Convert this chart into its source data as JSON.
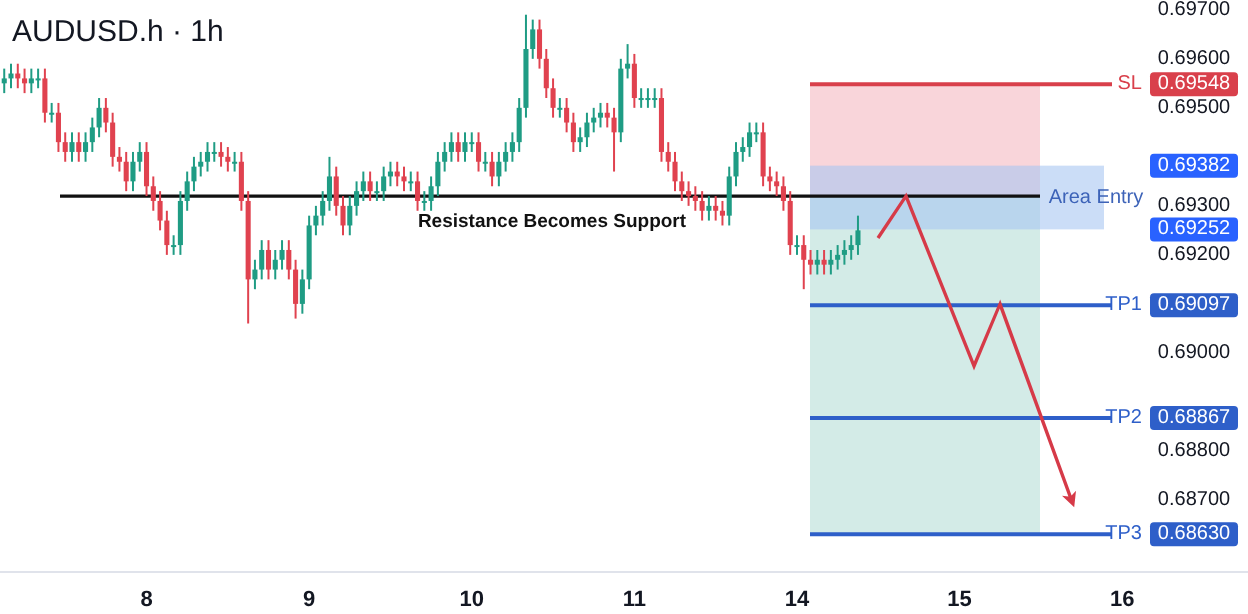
{
  "chart_data": {
    "type": "candlestick",
    "title": "AUDUSD.h · 1h",
    "categories": [
      null,
      null,
      null,
      null,
      null,
      null,
      null,
      null,
      null,
      null,
      null,
      null,
      null,
      null,
      null,
      null,
      null,
      null,
      null,
      null,
      null,
      "8",
      null,
      null,
      null,
      null,
      null,
      null,
      null,
      null,
      null,
      null,
      null,
      null,
      null,
      null,
      null,
      null,
      null,
      null,
      null,
      null,
      null,
      null,
      null,
      "9",
      null,
      null,
      null,
      null,
      null,
      null,
      null,
      null,
      null,
      null,
      null,
      null,
      null,
      null,
      null,
      null,
      null,
      null,
      null,
      null,
      null,
      null,
      null,
      "10",
      null,
      null,
      null,
      null,
      null,
      null,
      null,
      null,
      null,
      null,
      null,
      null,
      null,
      null,
      null,
      null,
      null,
      null,
      null,
      null,
      null,
      null,
      null,
      "11",
      null,
      null,
      null,
      null,
      null,
      null,
      null,
      null,
      null,
      null,
      null,
      null,
      null,
      null,
      null,
      null,
      null,
      null,
      null,
      null,
      null,
      null,
      null,
      "14",
      null,
      null,
      null,
      null,
      null,
      null,
      null,
      null,
      null,
      null,
      null,
      null,
      null,
      null,
      null,
      null,
      null,
      null,
      null,
      null,
      null,
      null,
      null,
      "15",
      null,
      null,
      null,
      null,
      null,
      null,
      null,
      null,
      null,
      null,
      null,
      null,
      null,
      null,
      null,
      null,
      null,
      null,
      null,
      null,
      null,
      null,
      null,
      "16",
      null,
      null
    ],
    "ohlc": [
      [
        0.6955,
        0.6958,
        0.6953,
        0.6956
      ],
      [
        0.6956,
        0.6959,
        0.6954,
        0.6957
      ],
      [
        0.6957,
        0.6959,
        0.6954,
        0.6956
      ],
      [
        0.6956,
        0.6958,
        0.6953,
        0.6955
      ],
      [
        0.6955,
        0.6958,
        0.6953,
        0.6956
      ],
      [
        0.6956,
        0.6958,
        0.6954,
        0.6956
      ],
      [
        0.6956,
        0.6958,
        0.6947,
        0.6949
      ],
      [
        0.6949,
        0.6951,
        0.6947,
        0.6949
      ],
      [
        0.6949,
        0.6951,
        0.6941,
        0.6943
      ],
      [
        0.6943,
        0.6945,
        0.6939,
        0.6941
      ],
      [
        0.6941,
        0.6945,
        0.6939,
        0.6943
      ],
      [
        0.6943,
        0.6945,
        0.6939,
        0.6941
      ],
      [
        0.6941,
        0.6945,
        0.6939,
        0.6943
      ],
      [
        0.6943,
        0.6948,
        0.6941,
        0.6946
      ],
      [
        0.6946,
        0.6952,
        0.6944,
        0.695
      ],
      [
        0.695,
        0.6952,
        0.6945,
        0.6947
      ],
      [
        0.6947,
        0.6949,
        0.6938,
        0.694
      ],
      [
        0.694,
        0.6942,
        0.6937,
        0.6939
      ],
      [
        0.6939,
        0.6941,
        0.6933,
        0.6935
      ],
      [
        0.6935,
        0.6941,
        0.6933,
        0.6939
      ],
      [
        0.6939,
        0.6943,
        0.6937,
        0.6941
      ],
      [
        0.6941,
        0.6943,
        0.6932,
        0.6934
      ],
      [
        0.6934,
        0.6936,
        0.6929,
        0.6931
      ],
      [
        0.6931,
        0.6933,
        0.6925,
        0.6927
      ],
      [
        0.6927,
        0.6929,
        0.692,
        0.6922
      ],
      [
        0.6922,
        0.6924,
        0.692,
        0.6922
      ],
      [
        0.6922,
        0.6933,
        0.692,
        0.6931
      ],
      [
        0.6931,
        0.6937,
        0.6929,
        0.6935
      ],
      [
        0.6935,
        0.694,
        0.6933,
        0.6938
      ],
      [
        0.6938,
        0.6941,
        0.6936,
        0.6939
      ],
      [
        0.6939,
        0.6943,
        0.6937,
        0.6941
      ],
      [
        0.6941,
        0.6943,
        0.6939,
        0.6941
      ],
      [
        0.6941,
        0.6943,
        0.6938,
        0.694
      ],
      [
        0.694,
        0.6942,
        0.6937,
        0.6939
      ],
      [
        0.6939,
        0.6941,
        0.6937,
        0.6939
      ],
      [
        0.6939,
        0.6941,
        0.6929,
        0.6931
      ],
      [
        0.6931,
        0.6933,
        0.6906,
        0.6915
      ],
      [
        0.6915,
        0.6919,
        0.6913,
        0.6917
      ],
      [
        0.6917,
        0.6923,
        0.6915,
        0.6921
      ],
      [
        0.6921,
        0.6923,
        0.6915,
        0.6917
      ],
      [
        0.6917,
        0.6921,
        0.6915,
        0.6919
      ],
      [
        0.6919,
        0.6923,
        0.6917,
        0.6921
      ],
      [
        0.6921,
        0.6923,
        0.6915,
        0.6917
      ],
      [
        0.6917,
        0.6919,
        0.6907,
        0.691
      ],
      [
        0.691,
        0.6917,
        0.6908,
        0.6915
      ],
      [
        0.6915,
        0.6928,
        0.6913,
        0.6926
      ],
      [
        0.6926,
        0.693,
        0.6924,
        0.6928
      ],
      [
        0.6928,
        0.6933,
        0.6926,
        0.6931
      ],
      [
        0.6931,
        0.694,
        0.6929,
        0.6936
      ],
      [
        0.6936,
        0.6938,
        0.6928,
        0.693
      ],
      [
        0.693,
        0.6932,
        0.6924,
        0.6926
      ],
      [
        0.6926,
        0.6932,
        0.6924,
        0.693
      ],
      [
        0.693,
        0.6935,
        0.6928,
        0.6933
      ],
      [
        0.6933,
        0.6937,
        0.6931,
        0.6935
      ],
      [
        0.6935,
        0.6937,
        0.6931,
        0.6933
      ],
      [
        0.6933,
        0.6935,
        0.6931,
        0.6933
      ],
      [
        0.6933,
        0.6938,
        0.6931,
        0.6936
      ],
      [
        0.6936,
        0.6939,
        0.6934,
        0.6937
      ],
      [
        0.6937,
        0.6939,
        0.6934,
        0.6936
      ],
      [
        0.6936,
        0.6938,
        0.6933,
        0.6935
      ],
      [
        0.6935,
        0.6937,
        0.6933,
        0.6935
      ],
      [
        0.6935,
        0.6937,
        0.6929,
        0.6931
      ],
      [
        0.6931,
        0.6933,
        0.6929,
        0.6931
      ],
      [
        0.6931,
        0.6936,
        0.6929,
        0.6934
      ],
      [
        0.6934,
        0.6941,
        0.6932,
        0.6939
      ],
      [
        0.6939,
        0.6943,
        0.6937,
        0.6941
      ],
      [
        0.6941,
        0.6945,
        0.6939,
        0.6943
      ],
      [
        0.6943,
        0.6945,
        0.6939,
        0.6941
      ],
      [
        0.6941,
        0.6945,
        0.6939,
        0.6943
      ],
      [
        0.6943,
        0.6945,
        0.6941,
        0.6943
      ],
      [
        0.6943,
        0.6945,
        0.6937,
        0.6939
      ],
      [
        0.6939,
        0.6941,
        0.6937,
        0.6939
      ],
      [
        0.6939,
        0.6941,
        0.6934,
        0.6936
      ],
      [
        0.6936,
        0.6941,
        0.6934,
        0.6939
      ],
      [
        0.6939,
        0.6943,
        0.6937,
        0.6941
      ],
      [
        0.6941,
        0.6945,
        0.6939,
        0.6943
      ],
      [
        0.6943,
        0.6952,
        0.6941,
        0.695
      ],
      [
        0.695,
        0.6969,
        0.6948,
        0.6962
      ],
      [
        0.6962,
        0.6968,
        0.696,
        0.6966
      ],
      [
        0.6966,
        0.6968,
        0.6958,
        0.696
      ],
      [
        0.696,
        0.6962,
        0.6952,
        0.6954
      ],
      [
        0.6954,
        0.6956,
        0.6948,
        0.695
      ],
      [
        0.695,
        0.6952,
        0.6948,
        0.695
      ],
      [
        0.695,
        0.6952,
        0.6945,
        0.6947
      ],
      [
        0.6947,
        0.6949,
        0.6941,
        0.6943
      ],
      [
        0.6943,
        0.6946,
        0.6941,
        0.6944
      ],
      [
        0.6944,
        0.6949,
        0.6942,
        0.6947
      ],
      [
        0.6947,
        0.695,
        0.6945,
        0.6948
      ],
      [
        0.6948,
        0.6951,
        0.6946,
        0.6949
      ],
      [
        0.6949,
        0.6951,
        0.6946,
        0.6948
      ],
      [
        0.6948,
        0.695,
        0.6937,
        0.6945
      ],
      [
        0.6945,
        0.696,
        0.6943,
        0.6958
      ],
      [
        0.6958,
        0.6963,
        0.6956,
        0.6959
      ],
      [
        0.6959,
        0.6961,
        0.695,
        0.6952
      ],
      [
        0.6952,
        0.6954,
        0.695,
        0.6952
      ],
      [
        0.6952,
        0.6954,
        0.695,
        0.6952
      ],
      [
        0.6952,
        0.6954,
        0.695,
        0.6952
      ],
      [
        0.6952,
        0.6954,
        0.6939,
        0.6941
      ],
      [
        0.6941,
        0.6943,
        0.6937,
        0.6939
      ],
      [
        0.6939,
        0.6941,
        0.6933,
        0.6935
      ],
      [
        0.6935,
        0.6937,
        0.6931,
        0.6933
      ],
      [
        0.6933,
        0.6935,
        0.693,
        0.6932
      ],
      [
        0.6932,
        0.6934,
        0.6929,
        0.6931
      ],
      [
        0.6931,
        0.6933,
        0.6927,
        0.6929
      ],
      [
        0.6929,
        0.6932,
        0.6927,
        0.693
      ],
      [
        0.693,
        0.6932,
        0.6927,
        0.6929
      ],
      [
        0.6929,
        0.6931,
        0.6926,
        0.6928
      ],
      [
        0.6928,
        0.6938,
        0.6926,
        0.6936
      ],
      [
        0.6936,
        0.6943,
        0.6934,
        0.6941
      ],
      [
        0.6941,
        0.6944,
        0.6939,
        0.6942
      ],
      [
        0.6942,
        0.6947,
        0.694,
        0.6945
      ],
      [
        0.6945,
        0.6947,
        0.6943,
        0.6945
      ],
      [
        0.6945,
        0.6947,
        0.6934,
        0.6936
      ],
      [
        0.6936,
        0.6938,
        0.6933,
        0.6935
      ],
      [
        0.6935,
        0.6937,
        0.6932,
        0.6934
      ],
      [
        0.6934,
        0.6936,
        0.6929,
        0.6931
      ],
      [
        0.6931,
        0.6933,
        0.692,
        0.6922
      ],
      [
        0.6922,
        0.6924,
        0.692,
        0.6922
      ],
      [
        0.6922,
        0.6924,
        0.6913,
        0.6919
      ],
      [
        0.6919,
        0.6921,
        0.6916,
        0.6918
      ],
      [
        0.6918,
        0.6921,
        0.6916,
        0.6919
      ],
      [
        0.6919,
        0.6921,
        0.6916,
        0.6918
      ],
      [
        0.6918,
        0.6921,
        0.6916,
        0.6919
      ],
      [
        0.6919,
        0.6922,
        0.6917,
        0.692
      ],
      [
        0.692,
        0.6923,
        0.6918,
        0.6921
      ],
      [
        0.6921,
        0.6924,
        0.6919,
        0.6922
      ],
      [
        0.6922,
        0.6928,
        0.692,
        0.6925
      ],
      null,
      null,
      null,
      null,
      null,
      null,
      null,
      null,
      null,
      null,
      null,
      null,
      null,
      null,
      null,
      null,
      null,
      null,
      null,
      null,
      null,
      null,
      null,
      null,
      null,
      null,
      null,
      null,
      null,
      null,
      null,
      null,
      null,
      null,
      null,
      null,
      null,
      null,
      null,
      null,
      null
    ],
    "ylim": [
      0.68553,
      0.6972
    ],
    "yticks": [
      {
        "value": 0.697,
        "label": "0.69700"
      },
      {
        "value": 0.696,
        "label": "0.69600"
      },
      {
        "value": 0.695,
        "label": "0.69500"
      },
      {
        "value": 0.69548,
        "label": "0.69548"
      },
      {
        "value": 0.69382,
        "label": "0.69382"
      },
      {
        "value": 0.69252,
        "label": "0.69252"
      },
      {
        "value": 0.69097,
        "label": "0.69097"
      },
      {
        "value": 0.68867,
        "label": "0.68867"
      },
      {
        "value": 0.6863,
        "label": "0.68630"
      },
      {
        "value": 0.693,
        "label": "0.69300"
      },
      {
        "value": 0.692,
        "label": "0.69200"
      },
      {
        "value": 0.69,
        "label": "0.69000"
      },
      {
        "value": 0.688,
        "label": "0.68800"
      },
      {
        "value": 0.687,
        "label": "0.68700"
      }
    ],
    "bands": [
      {
        "axis": "y",
        "from": 0.6932,
        "to": 0.69548,
        "color": "#f9d5da"
      },
      {
        "axis": "y",
        "from": 0.6863,
        "to": 0.6932,
        "color": "#d3ebe7"
      },
      {
        "axis": "y",
        "from": 0.69252,
        "to": 0.69382,
        "label": "Area Entry",
        "color": "#a9c6f2"
      }
    ],
    "ref_lines": [
      {
        "axis": "y",
        "value": 0.6932,
        "color": "#111111"
      },
      {
        "axis": "y",
        "value": 0.69548,
        "label": "SL",
        "color": "#d9404b"
      },
      {
        "axis": "y",
        "value": 0.69097,
        "label": "TP1",
        "color": "#2e5fc9"
      },
      {
        "axis": "y",
        "value": 0.68867,
        "label": "TP2",
        "color": "#2e5fc9"
      },
      {
        "axis": "y",
        "value": 0.6863,
        "label": "TP3",
        "color": "#2e5fc9"
      }
    ],
    "annotations": [
      {
        "text": "Resistance Becomes Support",
        "y": 0.6932
      }
    ]
  }
}
